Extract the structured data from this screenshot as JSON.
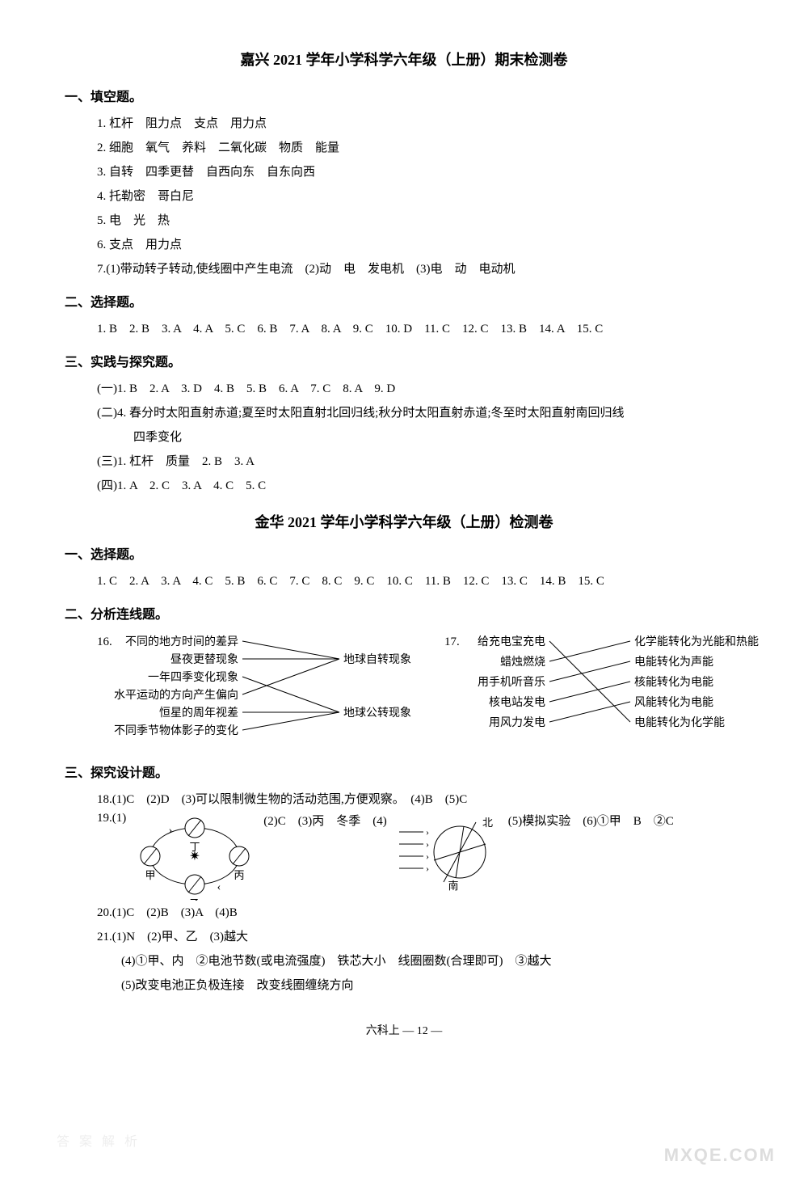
{
  "page": {
    "background_color": "#ffffff",
    "text_color": "#000000",
    "font_family": "SimSun",
    "base_fontsize": 15,
    "title_fontsize": 18
  },
  "paper1": {
    "title": "嘉兴 2021 学年小学科学六年级（上册）期末检测卷",
    "sections": {
      "s1": {
        "heading": "一、填空题。",
        "lines": [
          "1. 杠杆　阻力点　支点　用力点",
          "2. 细胞　氧气　养料　二氧化碳　物质　能量",
          "3. 自转　四季更替　自西向东　自东向西",
          "4. 托勒密　哥白尼",
          "5. 电　光　热",
          "6. 支点　用力点",
          "7.(1)带动转子转动,使线圈中产生电流　(2)动　电　发电机　(3)电　动　电动机"
        ]
      },
      "s2": {
        "heading": "二、选择题。",
        "lines": [
          "1. B　2. B　3. A　4. A　5. C　6. B　7. A　8. A　9. C　10. D　11. C　12. C　13. B　14. A　15. C"
        ]
      },
      "s3": {
        "heading": "三、实践与探究题。",
        "lines": [
          "(一)1. B　2. A　3. D　4. B　5. B　6. A　7. C　8. A　9. D",
          "(二)4. 春分时太阳直射赤道;夏至时太阳直射北回归线;秋分时太阳直射赤道;冬至时太阳直射南回归线",
          "　　　四季变化",
          "(三)1. 杠杆　质量　2. B　3. A",
          "(四)1. A　2. C　3. A　4. C　5. C"
        ]
      }
    }
  },
  "paper2": {
    "title": "金华 2021 学年小学科学六年级（上册）检测卷",
    "sections": {
      "s1": {
        "heading": "一、选择题。",
        "lines": [
          "1. C　2. A　3. A　4. C　5. B　6. C　7. C　8. C　9. C　10. C　11. B　12. C　13. C　14. B　15. C"
        ]
      },
      "s2": {
        "heading": "二、分析连线题。",
        "q16": {
          "num": "16.",
          "left": [
            "不同的地方时间的差异",
            "昼夜更替现象",
            "一年四季变化现象",
            "水平运动的方向产生偏向",
            "恒星的周年视差",
            "不同季节物体影子的变化"
          ],
          "right": [
            "地球自转现象",
            "地球公转现象"
          ],
          "connections_to_top": [
            0,
            1,
            3
          ],
          "connections_to_bottom": [
            2,
            4,
            5
          ],
          "line_color": "#000000"
        },
        "q17": {
          "num": "17.",
          "left": [
            "给充电宝充电",
            "蜡烛燃烧",
            "用手机听音乐",
            "核电站发电",
            "用风力发电"
          ],
          "right": [
            "化学能转化为光能和热能",
            "电能转化为声能",
            "核能转化为电能",
            "风能转化为电能",
            "电能转化为化学能"
          ],
          "connections": [
            [
              0,
              4
            ],
            [
              1,
              0
            ],
            [
              2,
              1
            ],
            [
              3,
              2
            ],
            [
              4,
              3
            ]
          ],
          "line_color": "#000000"
        }
      },
      "s3": {
        "heading": "三、探究设计题。",
        "line18": "18.(1)C　(2)D　(3)可以限制微生物的活动范围,方便观察。　(4)B　(5)C",
        "q19": {
          "prefix": "19.(1)",
          "midtext": "(2)C　(3)丙　冬季　(4)",
          "suffix": "(5)模拟实验　(6)①甲　B　②C",
          "orbit": {
            "labels": [
              "丁",
              "甲",
              "乙",
              "丙"
            ],
            "sun_char": "☀",
            "line_color": "#000000"
          },
          "globe": {
            "north": "北",
            "south": "南",
            "line_color": "#000000"
          }
        },
        "line20": "20.(1)C　(2)B　(3)A　(4)B",
        "line21a": "21.(1)N　(2)甲、乙　(3)越大",
        "line21b": "(4)①甲、内　②电池节数(或电流强度)　铁芯大小　线圈圈数(合理即可)　③越大",
        "line21c": "(5)改变电池正负极连接　改变线圈缠绕方向"
      }
    }
  },
  "footer": "六科上 — 12 —",
  "watermark_right": "MXQE.COM",
  "watermark_left": "答 案 解 析"
}
